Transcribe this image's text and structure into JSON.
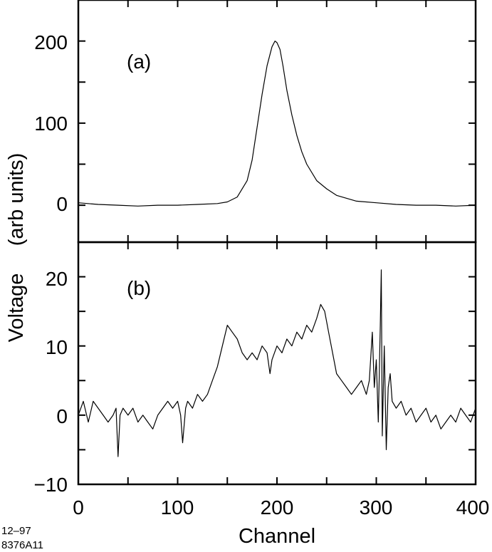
{
  "chart_data": [
    {
      "panel": "(a)",
      "type": "line",
      "xlabel": "Channel",
      "ylabel": "Voltage (arb units)",
      "xlim": [
        0,
        400
      ],
      "ylim": [
        -45,
        250
      ],
      "x_ticks": [
        "0",
        "100",
        "200",
        "300",
        "400"
      ],
      "y_ticks": [
        "0",
        "100",
        "200"
      ],
      "series": [
        {
          "x": [
            0,
            20,
            40,
            60,
            80,
            100,
            120,
            140,
            150,
            160,
            170,
            175,
            180,
            185,
            190,
            195,
            198,
            200,
            203,
            206,
            210,
            215,
            220,
            225,
            230,
            240,
            250,
            260,
            280,
            300,
            320,
            340,
            360,
            380,
            400
          ],
          "y": [
            3,
            1,
            0,
            -1,
            0,
            0,
            1,
            2,
            4,
            10,
            30,
            55,
            95,
            135,
            170,
            193,
            200,
            198,
            190,
            170,
            140,
            110,
            85,
            65,
            50,
            30,
            20,
            12,
            5,
            3,
            1,
            0,
            0,
            -1,
            0
          ]
        }
      ]
    },
    {
      "panel": "(b)",
      "type": "line",
      "xlabel": "Channel",
      "ylabel": "Voltage (arb units)",
      "xlim": [
        0,
        400
      ],
      "ylim": [
        -10,
        25
      ],
      "x_ticks": [
        "0",
        "100",
        "200",
        "300",
        "400"
      ],
      "y_ticks": [
        "−10",
        "0",
        "10",
        "20"
      ],
      "series": [
        {
          "x": [
            0,
            5,
            10,
            15,
            20,
            25,
            30,
            35,
            38,
            40,
            42,
            45,
            50,
            55,
            60,
            65,
            70,
            75,
            80,
            85,
            90,
            95,
            100,
            103,
            105,
            108,
            110,
            115,
            120,
            125,
            130,
            135,
            140,
            145,
            150,
            155,
            160,
            165,
            170,
            175,
            180,
            185,
            190,
            193,
            195,
            200,
            205,
            210,
            215,
            220,
            225,
            230,
            235,
            240,
            244,
            248,
            252,
            256,
            260,
            265,
            270,
            275,
            280,
            285,
            290,
            293,
            296,
            298,
            300,
            302,
            304,
            305,
            306,
            308,
            310,
            312,
            314,
            316,
            320,
            325,
            330,
            335,
            340,
            345,
            350,
            355,
            360,
            365,
            370,
            375,
            380,
            385,
            390,
            395,
            400
          ],
          "y": [
            0,
            2,
            -1,
            2,
            1,
            0,
            -1,
            0,
            1,
            -6,
            0,
            1,
            0,
            1,
            -1,
            0,
            -1,
            -2,
            0,
            1,
            2,
            1,
            2,
            0,
            -4,
            1,
            2,
            1,
            3,
            2,
            3,
            5,
            7,
            10,
            13,
            12,
            11,
            9,
            8,
            9,
            8,
            10,
            9,
            6,
            8,
            10,
            9,
            11,
            10,
            12,
            11,
            13,
            12,
            14,
            16,
            15,
            12,
            9,
            6,
            5,
            4,
            3,
            4,
            5,
            3,
            5,
            12,
            4,
            8,
            -1,
            13,
            21,
            -3,
            10,
            -5,
            4,
            6,
            2,
            1,
            2,
            0,
            1,
            -1,
            0,
            1,
            -1,
            0,
            -2,
            -1,
            0,
            -1,
            1,
            0,
            -1,
            1
          ]
        }
      ]
    }
  ],
  "labels": {
    "panel_a": "(a)",
    "panel_b": "(b)",
    "xlabel": "Channel",
    "ylabel_part1": "Voltage",
    "ylabel_part2": "(arb units)",
    "footnote_line1": "12–97",
    "footnote_line2": "8376A11"
  },
  "tick_labels": {
    "a_y": [
      "200",
      "100",
      "0"
    ],
    "b_y": [
      "20",
      "10",
      "0",
      "−10"
    ],
    "x": [
      "0",
      "100",
      "200",
      "300",
      "400"
    ]
  }
}
